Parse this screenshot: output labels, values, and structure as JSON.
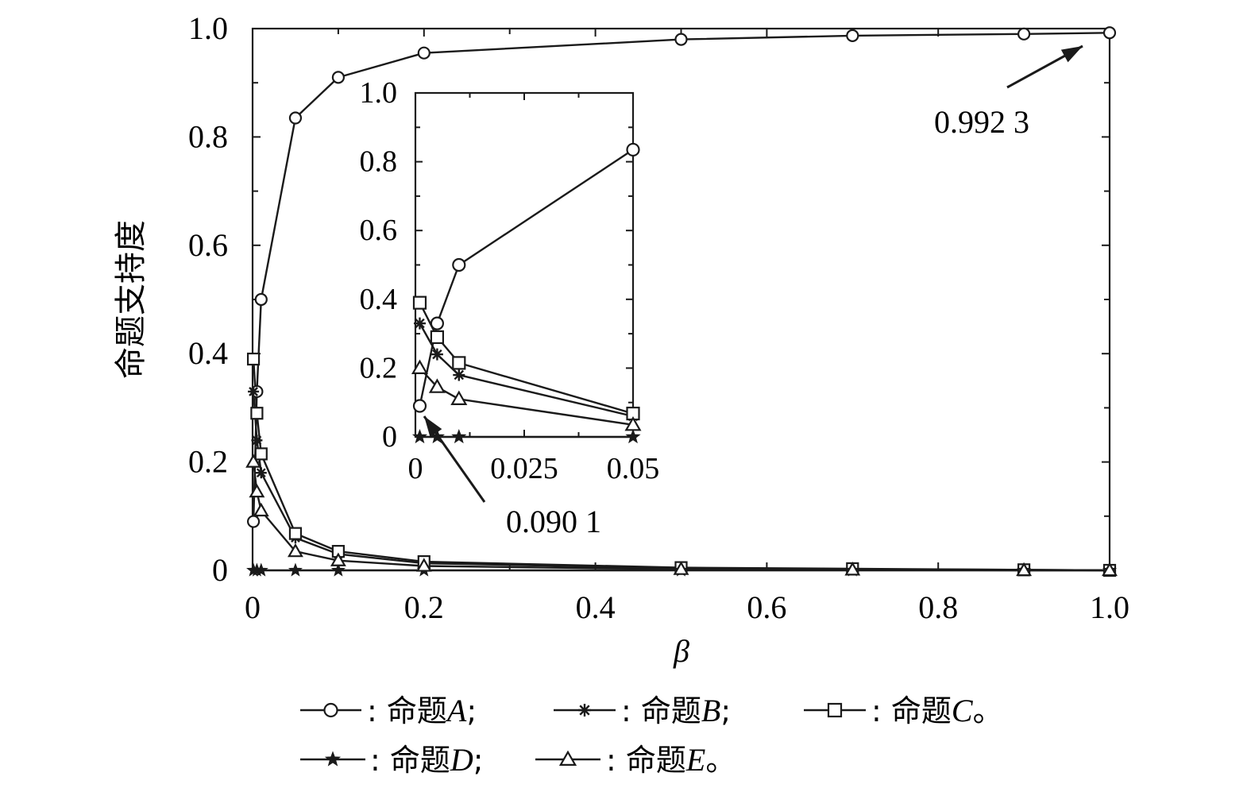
{
  "chart_data": [
    {
      "type": "line",
      "title": "",
      "xlabel": "β",
      "ylabel": "命题支持度",
      "xlim": [
        0,
        1.0
      ],
      "ylim": [
        0,
        1.0
      ],
      "xticks": [
        0,
        0.2,
        0.4,
        0.6,
        0.8,
        1.0
      ],
      "xtick_labels": [
        "0",
        "0.2",
        "0.4",
        "0.6",
        "0.8",
        "1.0"
      ],
      "yticks": [
        0,
        0.2,
        0.4,
        0.6,
        0.8,
        1.0
      ],
      "ytick_labels": [
        "0",
        "0.2",
        "0.4",
        "0.6",
        "0.8",
        "1.0"
      ],
      "grid": false,
      "legend_position": "bottom",
      "series": [
        {
          "name": "A",
          "marker": "circle",
          "x": [
            0.001,
            0.005,
            0.01,
            0.05,
            0.1,
            0.2,
            0.5,
            0.7,
            0.9,
            1.0
          ],
          "y": [
            0.0901,
            0.33,
            0.5,
            0.835,
            0.91,
            0.955,
            0.98,
            0.987,
            0.99,
            0.9923
          ]
        },
        {
          "name": "B",
          "marker": "asterisk",
          "x": [
            0.001,
            0.005,
            0.01,
            0.05,
            0.1,
            0.2,
            0.5,
            0.7,
            0.9,
            1.0
          ],
          "y": [
            0.33,
            0.24,
            0.18,
            0.06,
            0.03,
            0.013,
            0.004,
            0.002,
            0.001,
            0.0
          ]
        },
        {
          "name": "C",
          "marker": "square",
          "x": [
            0.001,
            0.005,
            0.01,
            0.05,
            0.1,
            0.2,
            0.5,
            0.7,
            0.9,
            1.0
          ],
          "y": [
            0.39,
            0.29,
            0.215,
            0.068,
            0.035,
            0.016,
            0.005,
            0.003,
            0.001,
            0.0
          ]
        },
        {
          "name": "D",
          "marker": "star",
          "x": [
            0.001,
            0.005,
            0.01,
            0.05,
            0.1,
            0.2,
            0.5,
            0.7,
            0.9,
            1.0
          ],
          "y": [
            0,
            0,
            0,
            0,
            0,
            0,
            0,
            0,
            0,
            0
          ]
        },
        {
          "name": "E",
          "marker": "triangle",
          "x": [
            0.001,
            0.005,
            0.01,
            0.05,
            0.1,
            0.2,
            0.5,
            0.7,
            0.9,
            1.0
          ],
          "y": [
            0.2,
            0.145,
            0.11,
            0.035,
            0.018,
            0.008,
            0.002,
            0.001,
            0.0,
            0.0
          ]
        }
      ],
      "annotations": [
        {
          "text": "0.992 3",
          "x": 1.0,
          "y": 0.9923
        }
      ]
    },
    {
      "type": "line",
      "title": "inset",
      "xlim": [
        0,
        0.05
      ],
      "ylim": [
        0,
        1.0
      ],
      "xticks": [
        0,
        0.025,
        0.05
      ],
      "xtick_labels": [
        "0",
        "0.025",
        "0.05"
      ],
      "yticks": [
        0,
        0.2,
        0.4,
        0.6,
        0.8,
        1.0
      ],
      "ytick_labels": [
        "0",
        "0.2",
        "0.4",
        "0.6",
        "0.8",
        "1.0"
      ],
      "grid": false,
      "series": [
        {
          "name": "A",
          "marker": "circle",
          "x": [
            0.001,
            0.005,
            0.01,
            0.05
          ],
          "y": [
            0.0901,
            0.33,
            0.5,
            0.835
          ]
        },
        {
          "name": "B",
          "marker": "asterisk",
          "x": [
            0.001,
            0.005,
            0.01,
            0.05
          ],
          "y": [
            0.33,
            0.24,
            0.18,
            0.06
          ]
        },
        {
          "name": "C",
          "marker": "square",
          "x": [
            0.001,
            0.005,
            0.01,
            0.05
          ],
          "y": [
            0.39,
            0.29,
            0.215,
            0.068
          ]
        },
        {
          "name": "D",
          "marker": "star",
          "x": [
            0.001,
            0.005,
            0.01,
            0.05
          ],
          "y": [
            0,
            0,
            0,
            0
          ]
        },
        {
          "name": "E",
          "marker": "triangle",
          "x": [
            0.001,
            0.005,
            0.01,
            0.05
          ],
          "y": [
            0.2,
            0.145,
            0.11,
            0.035
          ]
        }
      ],
      "annotations": [
        {
          "text": "0.090 1",
          "x": 0.001,
          "y": 0.0901
        }
      ]
    }
  ],
  "legend": {
    "items": [
      {
        "series": "A",
        "marker": "circle",
        "prefix": ": 命题",
        "letter": "A",
        "suffix": ";"
      },
      {
        "series": "B",
        "marker": "asterisk",
        "prefix": ": 命题",
        "letter": "B",
        "suffix": ";"
      },
      {
        "series": "C",
        "marker": "square",
        "prefix": ": 命题",
        "letter": "C",
        "suffix": "。"
      },
      {
        "series": "D",
        "marker": "star",
        "prefix": ": 命题",
        "letter": "D",
        "suffix": ";"
      },
      {
        "series": "E",
        "marker": "triangle",
        "prefix": ": 命题",
        "letter": "E",
        "suffix": "。"
      }
    ]
  },
  "colors": {
    "line": "#1a1a1a",
    "background": "#ffffff"
  }
}
